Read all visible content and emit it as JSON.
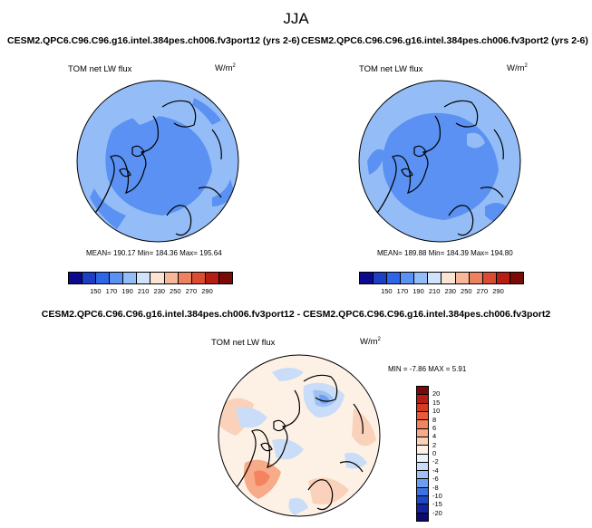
{
  "page_title": "JJA",
  "panels": [
    {
      "case_title": "CESM2.QPC6.C96.C96.g16.intel.384pes.ch006.fv3port12 (yrs 2-6)",
      "variable": "TOM net LW flux",
      "units_base": "W/m",
      "units_exp": "2",
      "stats": "MEAN= 190.17  Min= 184.36  Max= 195.64"
    },
    {
      "case_title": "CESM2.QPC6.C96.C96.g16.intel.384pes.ch006.fv3port2 (yrs 2-6)",
      "variable": "TOM net LW flux",
      "units_base": "W/m",
      "units_exp": "2",
      "stats": "MEAN= 189.88  Min= 184.39  Max= 194.80"
    }
  ],
  "diff_panel": {
    "title": "CESM2.QPC6.C96.C96.g16.intel.384pes.ch006.fv3port12 - CESM2.QPC6.C96.C96.g16.intel.384pes.ch006.fv3port2",
    "variable": "TOM net LW flux",
    "units_base": "W/m",
    "units_exp": "2",
    "stats": "MIN = -7.86 MAX =  5.91"
  },
  "abs_colorbar": {
    "colors": [
      "#0b0a8f",
      "#1d3fc4",
      "#2e66e8",
      "#5a91f2",
      "#94bdf7",
      "#cfe3fa",
      "#fbe4d4",
      "#f7b79a",
      "#ee8260",
      "#db4d33",
      "#b51d15",
      "#7a0a05"
    ],
    "tick_labels": [
      "150",
      "170",
      "190",
      "210",
      "230",
      "250",
      "270",
      "290"
    ]
  },
  "diff_colorbar": {
    "colors": [
      "#7a0a05",
      "#b51d15",
      "#d93a22",
      "#ea5b3a",
      "#f3845f",
      "#f7ab88",
      "#fad2bb",
      "#fdf1e6",
      "#eaf2fc",
      "#c9ddf8",
      "#9ec2f3",
      "#6f9ded",
      "#3d72e2",
      "#1f49c8",
      "#13249e",
      "#0b0a6e"
    ],
    "tick_labels": [
      "20",
      "15",
      "10",
      "8",
      "6",
      "4",
      "2",
      "0",
      "-2",
      "-4",
      "-6",
      "-8",
      "-10",
      "-15",
      "-20"
    ]
  }
}
